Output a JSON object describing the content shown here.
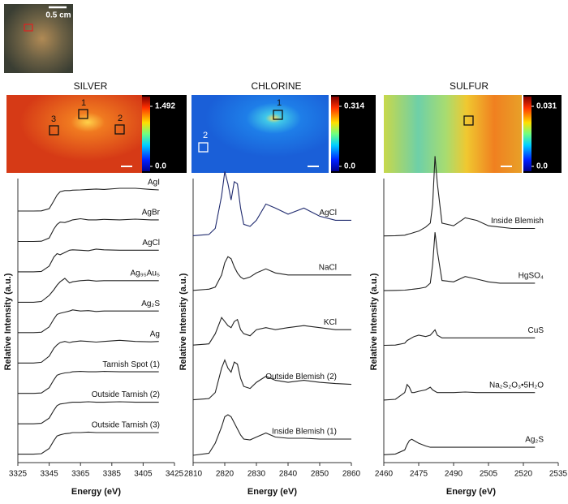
{
  "scale_bar": "0.5 cm",
  "chart_data": [
    {
      "type": "line",
      "title": "SILVER",
      "colorbar_ticks": [
        {
          "value": 0,
          "label": "0.0"
        },
        1.492
      ],
      "regions": [
        "1",
        "2",
        "3"
      ],
      "xlabel": "Energy (eV)",
      "ylabel": "Relative Intensity (a.u.)",
      "xlim": [
        3325,
        3425
      ],
      "xticks": [
        3325,
        3345,
        3365,
        3385,
        3405,
        3425
      ],
      "x": [
        3325,
        3335,
        3340,
        3345,
        3348,
        3350,
        3352,
        3355,
        3358,
        3360,
        3365,
        3370,
        3375,
        3380,
        3390,
        3400,
        3410,
        3415
      ],
      "series": [
        {
          "name": "AgI",
          "color": "#222222",
          "values": [
            0.05,
            0.05,
            0.06,
            0.15,
            0.5,
            0.75,
            0.9,
            0.95,
            0.95,
            0.97,
            0.98,
            1.0,
            1.02,
            1.0,
            1.05,
            1.05,
            1.0,
            0.98
          ]
        },
        {
          "name": "AgBr",
          "color": "#222222",
          "values": [
            0.05,
            0.05,
            0.06,
            0.2,
            0.6,
            0.8,
            0.9,
            0.88,
            0.95,
            1.0,
            1.05,
            1.0,
            1.0,
            1.02,
            1.0,
            1.03,
            1.0,
            1.0
          ]
        },
        {
          "name": "AgCl",
          "color": "#222222",
          "values": [
            0.05,
            0.05,
            0.07,
            0.3,
            0.7,
            0.85,
            0.8,
            0.9,
            1.0,
            1.02,
            1.0,
            0.98,
            1.05,
            1.02,
            1.0,
            1.0,
            1.0,
            1.0
          ]
        },
        {
          "name": "Ag₉₅Au₅",
          "color": "#222222",
          "values": [
            0.05,
            0.05,
            0.08,
            0.35,
            0.6,
            0.8,
            0.95,
            1.1,
            0.9,
            0.95,
            1.0,
            1.02,
            0.98,
            1.0,
            1.0,
            1.0,
            1.0,
            1.0
          ]
        },
        {
          "name": "Ag₂S",
          "color": "#222222",
          "values": [
            0.05,
            0.05,
            0.07,
            0.3,
            0.65,
            0.85,
            0.9,
            0.95,
            1.0,
            1.05,
            1.0,
            1.02,
            0.98,
            1.0,
            1.0,
            1.0,
            1.0,
            1.0
          ]
        },
        {
          "name": "Ag",
          "color": "#222222",
          "values": [
            0.05,
            0.05,
            0.08,
            0.35,
            0.7,
            0.85,
            0.95,
            1.0,
            0.95,
            0.98,
            1.02,
            1.0,
            0.97,
            1.0,
            1.05,
            1.0,
            0.98,
            1.0
          ]
        },
        {
          "name": "Tarnish Spot (1)",
          "color": "#222222",
          "values": [
            0.05,
            0.05,
            0.07,
            0.3,
            0.65,
            0.85,
            0.9,
            0.95,
            0.97,
            1.0,
            1.02,
            1.0,
            1.0,
            1.02,
            1.0,
            1.0,
            1.0,
            1.0
          ]
        },
        {
          "name": "Outside Tarnish (2)",
          "color": "#222222",
          "values": [
            0.05,
            0.05,
            0.07,
            0.3,
            0.65,
            0.85,
            0.92,
            0.95,
            0.98,
            1.0,
            1.0,
            1.02,
            1.0,
            1.0,
            1.02,
            1.0,
            1.0,
            1.0
          ]
        },
        {
          "name": "Outside Tarnish (3)",
          "color": "#222222",
          "values": [
            0.05,
            0.05,
            0.07,
            0.3,
            0.65,
            0.85,
            0.9,
            0.95,
            0.97,
            1.0,
            1.0,
            1.02,
            1.0,
            1.0,
            1.0,
            1.0,
            1.0,
            1.0
          ]
        }
      ]
    },
    {
      "type": "line",
      "title": "CHLORINE",
      "colorbar_ticks": [
        {
          "value": 0,
          "label": "0.0"
        },
        0.314
      ],
      "regions": [
        "1",
        "2"
      ],
      "xlabel": "Energy (eV)",
      "ylabel": "Relative Intensity (a.u.)",
      "xlim": [
        2810,
        2860
      ],
      "xticks": [
        2810,
        2820,
        2830,
        2840,
        2850,
        2860
      ],
      "x": [
        2810,
        2815,
        2817,
        2819,
        2820,
        2821,
        2822,
        2823,
        2824,
        2825,
        2826,
        2828,
        2830,
        2833,
        2836,
        2840,
        2845,
        2850,
        2855,
        2860
      ],
      "series": [
        {
          "name": "AgCl",
          "color": "#1f2a6e",
          "values": [
            0.02,
            0.05,
            0.2,
            1.0,
            1.6,
            1.3,
            0.9,
            1.35,
            1.3,
            0.7,
            0.3,
            0.25,
            0.4,
            0.8,
            0.7,
            0.55,
            0.7,
            0.5,
            0.4,
            0.4
          ]
        },
        {
          "name": "NaCl",
          "color": "#222222",
          "values": [
            0.02,
            0.05,
            0.1,
            0.4,
            0.7,
            0.85,
            0.8,
            0.6,
            0.45,
            0.35,
            0.3,
            0.35,
            0.45,
            0.55,
            0.45,
            0.4,
            0.4,
            0.4,
            0.4,
            0.4
          ]
        },
        {
          "name": "KCl",
          "color": "#222222",
          "values": [
            0.02,
            0.05,
            0.3,
            0.7,
            0.6,
            0.5,
            0.45,
            0.6,
            0.65,
            0.4,
            0.3,
            0.25,
            0.4,
            0.45,
            0.4,
            0.45,
            0.5,
            0.45,
            0.4,
            0.4
          ]
        },
        {
          "name": "Outside Blemish (2)",
          "color": "#222222",
          "values": [
            0.02,
            0.05,
            0.2,
            0.8,
            1.0,
            0.8,
            0.7,
            0.95,
            0.9,
            0.55,
            0.35,
            0.3,
            0.45,
            0.6,
            0.5,
            0.45,
            0.5,
            0.45,
            0.42,
            0.4
          ]
        },
        {
          "name": "Inside Blemish (1)",
          "color": "#222222",
          "values": [
            0.0,
            0.05,
            0.3,
            0.7,
            0.95,
            1.0,
            0.95,
            0.8,
            0.65,
            0.5,
            0.4,
            0.38,
            0.45,
            0.55,
            0.45,
            0.42,
            0.42,
            0.4,
            0.4,
            0.4
          ]
        }
      ]
    },
    {
      "type": "line",
      "title": "SULFUR",
      "colorbar_ticks": [
        {
          "value": 0,
          "label": "0.0"
        },
        0.031
      ],
      "xlabel": "Energy (eV)",
      "ylabel": "Relative Intensity (a.u.)",
      "xlim": [
        2460,
        2535
      ],
      "xticks": [
        2460,
        2475,
        2490,
        2505,
        2520,
        2535
      ],
      "x": [
        2460,
        2465,
        2469,
        2470,
        2471,
        2472,
        2473,
        2475,
        2478,
        2480,
        2481,
        2482,
        2483,
        2485,
        2490,
        2495,
        2500,
        2505,
        2510,
        2515,
        2520,
        2525
      ],
      "series": [
        {
          "name": "Inside Blemish",
          "color": "#222222",
          "values": [
            0.02,
            0.03,
            0.05,
            0.08,
            0.1,
            0.12,
            0.15,
            0.2,
            0.35,
            0.5,
            1.2,
            3.0,
            2.0,
            0.5,
            0.4,
            0.7,
            0.6,
            0.4,
            0.35,
            0.3,
            0.3,
            0.3
          ]
        },
        {
          "name": "HgSO₄",
          "color": "#222222",
          "values": [
            0.02,
            0.03,
            0.04,
            0.05,
            0.06,
            0.07,
            0.08,
            0.1,
            0.15,
            0.3,
            1.0,
            2.2,
            1.5,
            0.4,
            0.35,
            0.55,
            0.45,
            0.35,
            0.3,
            0.3,
            0.3,
            0.3
          ]
        },
        {
          "name": "CuS",
          "color": "#222222",
          "values": [
            0.02,
            0.03,
            0.1,
            0.2,
            0.25,
            0.3,
            0.35,
            0.4,
            0.35,
            0.4,
            0.5,
            0.6,
            0.4,
            0.3,
            0.3,
            0.3,
            0.3,
            0.3,
            0.3,
            0.3,
            0.3,
            0.3
          ]
        },
        {
          "name": "Na₂S₂O₃•5H₂O",
          "color": "#222222",
          "values": [
            0.02,
            0.05,
            0.3,
            0.6,
            0.5,
            0.3,
            0.3,
            0.35,
            0.4,
            0.5,
            0.4,
            0.35,
            0.3,
            0.3,
            0.3,
            0.32,
            0.3,
            0.3,
            0.3,
            0.3,
            0.3,
            0.3
          ]
        },
        {
          "name": "Ag₂S",
          "color": "#222222",
          "values": [
            0.02,
            0.05,
            0.2,
            0.4,
            0.55,
            0.6,
            0.55,
            0.45,
            0.35,
            0.3,
            0.3,
            0.3,
            0.3,
            0.3,
            0.3,
            0.3,
            0.3,
            0.3,
            0.3,
            0.3,
            0.3,
            0.3
          ]
        }
      ]
    }
  ]
}
